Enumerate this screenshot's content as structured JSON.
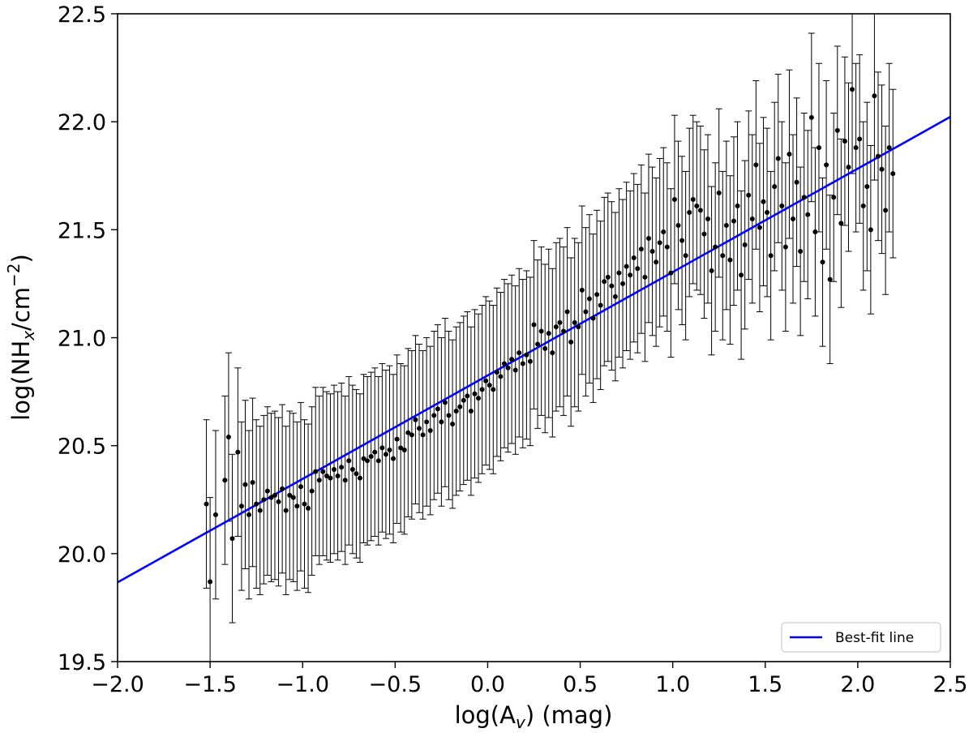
{
  "chart_data": {
    "type": "scatter",
    "xlabel": {
      "main": "log(A",
      "sub": "v",
      "tail": ") (mag)"
    },
    "ylabel": {
      "main": "log(NH",
      "sub": "x",
      "mid": "/cm",
      "sup": "−2",
      "tail": ")"
    },
    "xlim": [
      -2.0,
      2.5
    ],
    "ylim": [
      19.5,
      22.5
    ],
    "x_ticks": [
      "−2.0",
      "−1.5",
      "−1.0",
      "−0.5",
      "0.0",
      "0.5",
      "1.0",
      "1.5",
      "2.0",
      "2.5"
    ],
    "y_ticks": [
      "19.5",
      "20.0",
      "20.5",
      "21.0",
      "21.5",
      "22.0",
      "22.5"
    ],
    "grid": false,
    "legend": {
      "position": "bottom-right",
      "entries": [
        {
          "label": "Best-fit line",
          "color": "#0000ff"
        }
      ]
    },
    "colors": {
      "points": "#000000",
      "fit_line": "#0000ff"
    },
    "fit_line": {
      "slope": 0.479,
      "intercept": 20.825,
      "x_range": [
        -2.0,
        2.5
      ]
    },
    "error_bar_half_width": 0.39,
    "points": [
      [
        -1.52,
        20.23
      ],
      [
        -1.5,
        19.87
      ],
      [
        -1.47,
        20.18
      ],
      [
        -1.42,
        20.34
      ],
      [
        -1.4,
        20.54
      ],
      [
        -1.38,
        20.07
      ],
      [
        -1.35,
        20.47
      ],
      [
        -1.33,
        20.22
      ],
      [
        -1.31,
        20.32
      ],
      [
        -1.29,
        20.18
      ],
      [
        -1.27,
        20.33
      ],
      [
        -1.25,
        20.23
      ],
      [
        -1.23,
        20.2
      ],
      [
        -1.21,
        20.25
      ],
      [
        -1.19,
        20.29
      ],
      [
        -1.17,
        20.26
      ],
      [
        -1.15,
        20.27
      ],
      [
        -1.13,
        20.24
      ],
      [
        -1.11,
        20.3
      ],
      [
        -1.09,
        20.2
      ],
      [
        -1.07,
        20.27
      ],
      [
        -1.05,
        20.26
      ],
      [
        -1.03,
        20.22
      ],
      [
        -1.01,
        20.31
      ],
      [
        -0.99,
        20.23
      ],
      [
        -0.97,
        20.21
      ],
      [
        -0.95,
        20.29
      ],
      [
        -0.93,
        20.38
      ],
      [
        -0.91,
        20.34
      ],
      [
        -0.89,
        20.38
      ],
      [
        -0.87,
        20.36
      ],
      [
        -0.85,
        20.35
      ],
      [
        -0.83,
        20.39
      ],
      [
        -0.81,
        20.36
      ],
      [
        -0.79,
        20.4
      ],
      [
        -0.77,
        20.34
      ],
      [
        -0.75,
        20.43
      ],
      [
        -0.73,
        20.39
      ],
      [
        -0.71,
        20.37
      ],
      [
        -0.69,
        20.35
      ],
      [
        -0.67,
        20.44
      ],
      [
        -0.65,
        20.43
      ],
      [
        -0.63,
        20.45
      ],
      [
        -0.61,
        20.47
      ],
      [
        -0.59,
        20.43
      ],
      [
        -0.57,
        20.49
      ],
      [
        -0.55,
        20.46
      ],
      [
        -0.53,
        20.48
      ],
      [
        -0.51,
        20.44
      ],
      [
        -0.49,
        20.53
      ],
      [
        -0.47,
        20.49
      ],
      [
        -0.45,
        20.48
      ],
      [
        -0.43,
        20.56
      ],
      [
        -0.41,
        20.55
      ],
      [
        -0.39,
        20.62
      ],
      [
        -0.37,
        20.58
      ],
      [
        -0.35,
        20.55
      ],
      [
        -0.33,
        20.61
      ],
      [
        -0.31,
        20.57
      ],
      [
        -0.29,
        20.64
      ],
      [
        -0.27,
        20.67
      ],
      [
        -0.25,
        20.61
      ],
      [
        -0.23,
        20.7
      ],
      [
        -0.21,
        20.64
      ],
      [
        -0.19,
        20.6
      ],
      [
        -0.17,
        20.66
      ],
      [
        -0.15,
        20.68
      ],
      [
        -0.13,
        20.71
      ],
      [
        -0.11,
        20.73
      ],
      [
        -0.09,
        20.66
      ],
      [
        -0.07,
        20.74
      ],
      [
        -0.05,
        20.72
      ],
      [
        -0.03,
        20.76
      ],
      [
        -0.01,
        20.8
      ],
      [
        0.01,
        20.78
      ],
      [
        0.03,
        20.76
      ],
      [
        0.05,
        20.84
      ],
      [
        0.07,
        20.82
      ],
      [
        0.09,
        20.88
      ],
      [
        0.11,
        20.86
      ],
      [
        0.13,
        20.9
      ],
      [
        0.15,
        20.85
      ],
      [
        0.17,
        20.93
      ],
      [
        0.19,
        20.88
      ],
      [
        0.21,
        20.92
      ],
      [
        0.23,
        20.89
      ],
      [
        0.25,
        21.06
      ],
      [
        0.27,
        20.97
      ],
      [
        0.29,
        21.03
      ],
      [
        0.31,
        20.95
      ],
      [
        0.33,
        21.02
      ],
      [
        0.35,
        20.93
      ],
      [
        0.37,
        21.05
      ],
      [
        0.39,
        21.07
      ],
      [
        0.41,
        21.03
      ],
      [
        0.43,
        21.12
      ],
      [
        0.45,
        20.98
      ],
      [
        0.47,
        21.07
      ],
      [
        0.49,
        21.05
      ],
      [
        0.51,
        21.22
      ],
      [
        0.53,
        21.12
      ],
      [
        0.55,
        21.18
      ],
      [
        0.57,
        21.09
      ],
      [
        0.59,
        21.2
      ],
      [
        0.61,
        21.15
      ],
      [
        0.63,
        21.26
      ],
      [
        0.65,
        21.28
      ],
      [
        0.67,
        21.24
      ],
      [
        0.69,
        21.19
      ],
      [
        0.71,
        21.3
      ],
      [
        0.73,
        21.25
      ],
      [
        0.75,
        21.33
      ],
      [
        0.77,
        21.29
      ],
      [
        0.79,
        21.37
      ],
      [
        0.81,
        21.32
      ],
      [
        0.83,
        21.41
      ],
      [
        0.85,
        21.28
      ],
      [
        0.87,
        21.46
      ],
      [
        0.89,
        21.4
      ],
      [
        0.91,
        21.35
      ],
      [
        0.93,
        21.44
      ],
      [
        0.95,
        21.49
      ],
      [
        0.97,
        21.42
      ],
      [
        0.99,
        21.3
      ],
      [
        1.01,
        21.64
      ],
      [
        1.03,
        21.52
      ],
      [
        1.05,
        21.45
      ],
      [
        1.07,
        21.38
      ],
      [
        1.09,
        21.58
      ],
      [
        1.11,
        21.64
      ],
      [
        1.13,
        21.61
      ],
      [
        1.15,
        21.59
      ],
      [
        1.17,
        21.48
      ],
      [
        1.19,
        21.55
      ],
      [
        1.21,
        21.31
      ],
      [
        1.23,
        21.42
      ],
      [
        1.25,
        21.67
      ],
      [
        1.27,
        21.38
      ],
      [
        1.29,
        21.52
      ],
      [
        1.31,
        21.36
      ],
      [
        1.33,
        21.54
      ],
      [
        1.35,
        21.61
      ],
      [
        1.37,
        21.29
      ],
      [
        1.39,
        21.43
      ],
      [
        1.41,
        21.66
      ],
      [
        1.43,
        21.55
      ],
      [
        1.45,
        21.8
      ],
      [
        1.47,
        21.51
      ],
      [
        1.49,
        21.63
      ],
      [
        1.51,
        21.58
      ],
      [
        1.53,
        21.38
      ],
      [
        1.55,
        21.7
      ],
      [
        1.57,
        21.83
      ],
      [
        1.59,
        21.61
      ],
      [
        1.61,
        21.42
      ],
      [
        1.63,
        21.85
      ],
      [
        1.65,
        21.55
      ],
      [
        1.67,
        21.72
      ],
      [
        1.69,
        21.4
      ],
      [
        1.71,
        21.65
      ],
      [
        1.73,
        21.57
      ],
      [
        1.75,
        22.02
      ],
      [
        1.77,
        21.49
      ],
      [
        1.79,
        21.88
      ],
      [
        1.81,
        21.35
      ],
      [
        1.83,
        21.8
      ],
      [
        1.85,
        21.27
      ],
      [
        1.87,
        21.65
      ],
      [
        1.89,
        21.96
      ],
      [
        1.91,
        21.53
      ],
      [
        1.93,
        21.91
      ],
      [
        1.95,
        21.79
      ],
      [
        1.97,
        22.15
      ],
      [
        1.99,
        21.88
      ],
      [
        2.01,
        21.92
      ],
      [
        2.03,
        21.61
      ],
      [
        2.05,
        21.7
      ],
      [
        2.07,
        21.5
      ],
      [
        2.09,
        22.12
      ],
      [
        2.11,
        21.84
      ],
      [
        2.13,
        21.78
      ],
      [
        2.15,
        21.59
      ],
      [
        2.17,
        21.88
      ],
      [
        2.19,
        21.76
      ]
    ]
  }
}
